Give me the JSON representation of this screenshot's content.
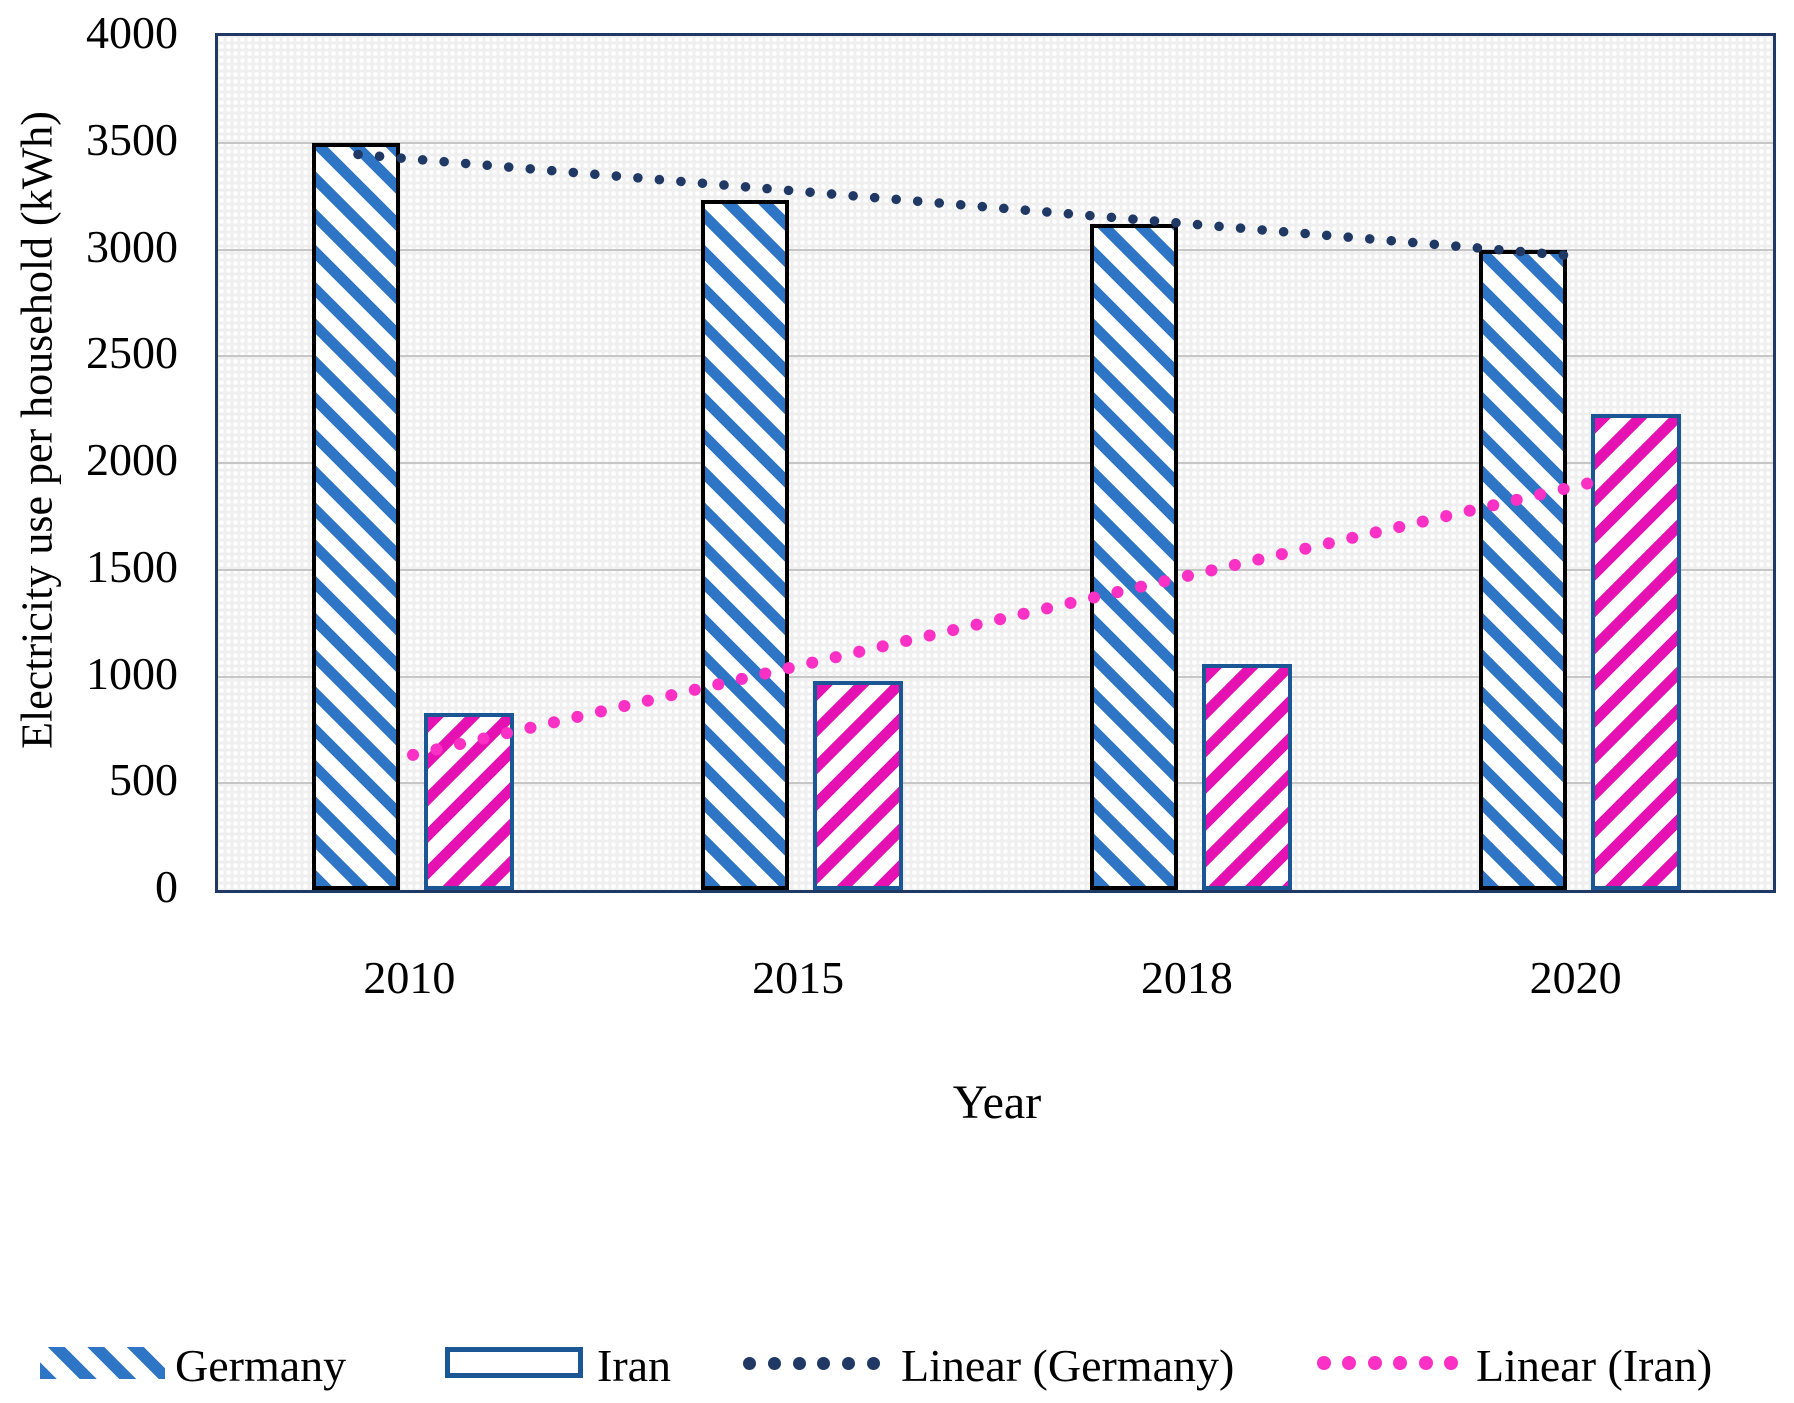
{
  "chart_data": {
    "type": "bar",
    "categories": [
      "2010",
      "2015",
      "2018",
      "2020"
    ],
    "series": [
      {
        "name": "Germany",
        "values": [
          3500,
          3230,
          3120,
          3000
        ],
        "hatch": "\\",
        "hatch_color": "#2E75C6",
        "border_color": "#000000"
      },
      {
        "name": "Iran",
        "values": [
          830,
          980,
          1060,
          2230
        ],
        "hatch": "/",
        "hatch_color": "#E611B2",
        "border_color": "#1B5795"
      }
    ],
    "trendlines": [
      {
        "name": "Linear (Germany)",
        "color": "#1F3864",
        "start_value": 3445,
        "end_value": 2970
      },
      {
        "name": "Linear (Iran)",
        "color": "#FB30C5",
        "start_value": 633,
        "end_value": 1910
      }
    ],
    "xlabel": "Year",
    "ylabel": "Electricity use per household (kWh)",
    "ylim": [
      0,
      4000
    ],
    "ytick_step": 500,
    "yticks": [
      "0",
      "500",
      "1000",
      "1500",
      "2000",
      "2500",
      "3000",
      "3500",
      "4000"
    ],
    "grid": "horizontal",
    "legend_position": "bottom",
    "plot_bg_color": "#EFEFEF",
    "grid_color": "#C6C6C6",
    "plot_border_color": "#1F3864"
  }
}
